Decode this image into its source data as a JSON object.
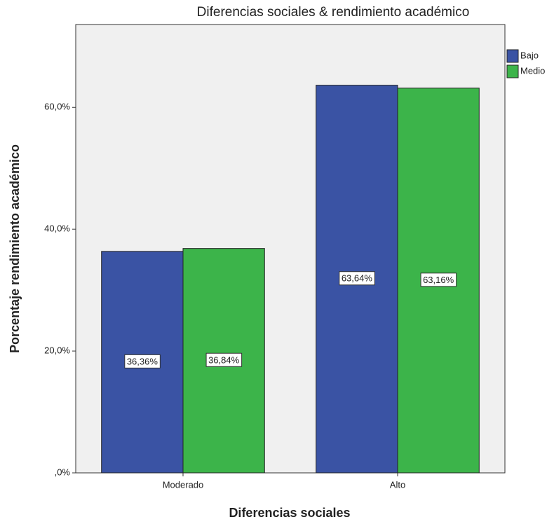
{
  "chart_data": {
    "type": "bar",
    "title": "Diferencias sociales & rendimiento académico",
    "x_label": "Diferencias sociales",
    "y_label": "Porcentaje rendimiento académico",
    "categories": [
      "Moderado",
      "Alto"
    ],
    "series": [
      {
        "name": "Bajo",
        "color": "#3a53a4",
        "values": [
          36.36,
          63.64
        ],
        "value_labels": [
          "36,36%",
          "63,64%"
        ]
      },
      {
        "name": "Medio",
        "color": "#3cb44a",
        "values": [
          36.84,
          63.16
        ],
        "value_labels": [
          "36,84%",
          "63,16%"
        ]
      }
    ],
    "ylim": [
      0,
      73.6
    ],
    "yticks": [
      {
        "value": 0,
        "label": ",0%"
      },
      {
        "value": 20,
        "label": "20,0%"
      },
      {
        "value": 40,
        "label": "40,0%"
      },
      {
        "value": 60,
        "label": "60,0%"
      }
    ],
    "legend": "top-right"
  }
}
